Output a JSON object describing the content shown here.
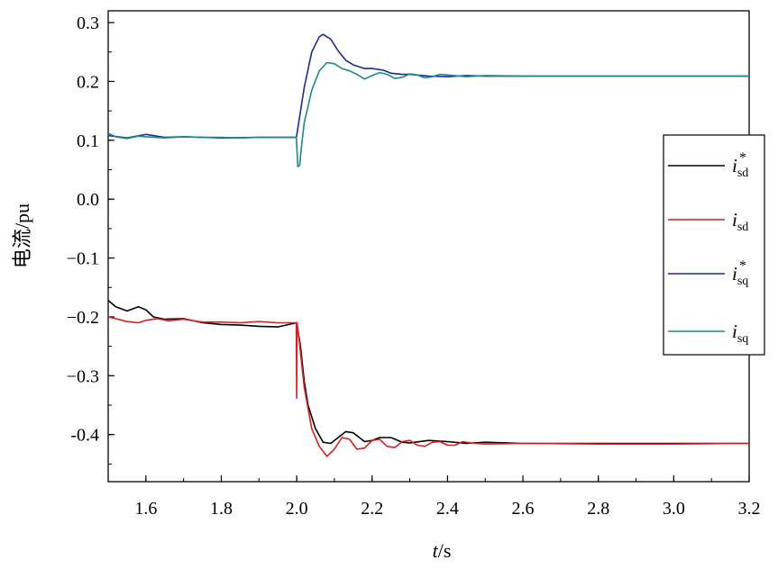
{
  "chart_data": {
    "type": "line",
    "title": "",
    "xlabel_italic": "t",
    "xlabel_unit": "/s",
    "ylabel": "电流/pu",
    "xlim": [
      1.5,
      3.2
    ],
    "ylim": [
      -0.48,
      0.32
    ],
    "xticks": [
      1.6,
      1.8,
      2.0,
      2.2,
      2.4,
      2.6,
      2.8,
      3.0,
      3.2
    ],
    "xtick_labels": [
      "1.6",
      "1.8",
      "2.0",
      "2.2",
      "2.4",
      "2.6",
      "2.8",
      "3.0",
      "3.2"
    ],
    "yticks": [
      0.3,
      0.2,
      0.1,
      0.0,
      -0.1,
      -0.2,
      -0.3,
      -0.4
    ],
    "ytick_labels": [
      "0.3",
      "0.2",
      "0.1",
      "0.0",
      "−0.1",
      "−0.2",
      "−0.3",
      "-0.4"
    ],
    "grid": false,
    "legend_position": "right",
    "series": [
      {
        "name": "i_sd*",
        "label_main": "i",
        "label_sub": "sd",
        "label_sup": "*",
        "color": "#000000",
        "x": [
          1.5,
          1.52,
          1.55,
          1.58,
          1.6,
          1.62,
          1.65,
          1.7,
          1.75,
          1.8,
          1.85,
          1.9,
          1.95,
          2.0,
          2.01,
          2.02,
          2.03,
          2.05,
          2.07,
          2.09,
          2.11,
          2.13,
          2.15,
          2.18,
          2.2,
          2.22,
          2.25,
          2.28,
          2.3,
          2.35,
          2.4,
          2.45,
          2.5,
          2.6,
          2.8,
          3.0,
          3.2
        ],
        "y": [
          -0.172,
          -0.183,
          -0.19,
          -0.183,
          -0.188,
          -0.2,
          -0.204,
          -0.203,
          -0.21,
          -0.213,
          -0.214,
          -0.216,
          -0.217,
          -0.21,
          -0.25,
          -0.31,
          -0.35,
          -0.39,
          -0.413,
          -0.415,
          -0.405,
          -0.395,
          -0.397,
          -0.412,
          -0.41,
          -0.405,
          -0.405,
          -0.413,
          -0.414,
          -0.41,
          -0.412,
          -0.415,
          -0.413,
          -0.415,
          -0.415,
          -0.415,
          -0.415
        ]
      },
      {
        "name": "i_sd",
        "label_main": "i",
        "label_sub": "sd",
        "label_sup": "",
        "color": "#e31a1c",
        "x": [
          1.5,
          1.52,
          1.55,
          1.58,
          1.6,
          1.63,
          1.66,
          1.7,
          1.75,
          1.8,
          1.85,
          1.9,
          1.95,
          1.999,
          2.0,
          2.001,
          2.005,
          2.02,
          2.04,
          2.06,
          2.08,
          2.1,
          2.12,
          2.14,
          2.16,
          2.18,
          2.2,
          2.22,
          2.24,
          2.26,
          2.28,
          2.3,
          2.32,
          2.34,
          2.36,
          2.38,
          2.4,
          2.42,
          2.44,
          2.46,
          2.5,
          2.6,
          2.8,
          3.0,
          3.2
        ],
        "y": [
          -0.2,
          -0.203,
          -0.208,
          -0.21,
          -0.206,
          -0.203,
          -0.207,
          -0.204,
          -0.209,
          -0.209,
          -0.21,
          -0.208,
          -0.21,
          -0.21,
          -0.338,
          -0.21,
          -0.23,
          -0.32,
          -0.39,
          -0.42,
          -0.437,
          -0.425,
          -0.405,
          -0.408,
          -0.425,
          -0.423,
          -0.41,
          -0.408,
          -0.42,
          -0.422,
          -0.412,
          -0.41,
          -0.418,
          -0.42,
          -0.413,
          -0.412,
          -0.418,
          -0.418,
          -0.412,
          -0.414,
          -0.416,
          -0.415,
          -0.416,
          -0.416,
          -0.415
        ]
      },
      {
        "name": "i_sq*",
        "label_main": "i",
        "label_sub": "sq",
        "label_sup": "*",
        "color": "#1a2a9c",
        "x": [
          1.5,
          1.55,
          1.6,
          1.65,
          1.7,
          1.8,
          1.9,
          1.95,
          1.999,
          2.0,
          2.02,
          2.04,
          2.06,
          2.07,
          2.09,
          2.11,
          2.13,
          2.15,
          2.18,
          2.2,
          2.23,
          2.25,
          2.28,
          2.3,
          2.35,
          2.4,
          2.45,
          2.5,
          2.6,
          2.8,
          3.0,
          3.2
        ],
        "y": [
          0.108,
          0.104,
          0.11,
          0.105,
          0.106,
          0.104,
          0.105,
          0.105,
          0.105,
          0.108,
          0.19,
          0.25,
          0.276,
          0.28,
          0.272,
          0.252,
          0.236,
          0.228,
          0.222,
          0.222,
          0.219,
          0.214,
          0.212,
          0.212,
          0.209,
          0.208,
          0.21,
          0.209,
          0.209,
          0.209,
          0.209,
          0.209
        ]
      },
      {
        "name": "i_sq",
        "label_main": "i",
        "label_sub": "sq",
        "label_sup": "",
        "color": "#1a8a8a",
        "x": [
          1.5,
          1.52,
          1.55,
          1.58,
          1.6,
          1.65,
          1.7,
          1.75,
          1.8,
          1.85,
          1.9,
          1.95,
          1.999,
          2.003,
          2.008,
          2.012,
          2.02,
          2.04,
          2.06,
          2.08,
          2.1,
          2.12,
          2.14,
          2.16,
          2.18,
          2.2,
          2.22,
          2.24,
          2.26,
          2.28,
          2.3,
          2.32,
          2.34,
          2.36,
          2.38,
          2.4,
          2.45,
          2.5,
          2.6,
          2.8,
          3.0,
          3.2
        ],
        "y": [
          0.112,
          0.106,
          0.103,
          0.107,
          0.106,
          0.104,
          0.106,
          0.105,
          0.105,
          0.104,
          0.105,
          0.105,
          0.105,
          0.055,
          0.058,
          0.085,
          0.13,
          0.185,
          0.218,
          0.232,
          0.23,
          0.222,
          0.218,
          0.212,
          0.204,
          0.21,
          0.215,
          0.212,
          0.205,
          0.207,
          0.213,
          0.211,
          0.206,
          0.208,
          0.212,
          0.211,
          0.208,
          0.21,
          0.209,
          0.209,
          0.209,
          0.209
        ]
      }
    ]
  }
}
